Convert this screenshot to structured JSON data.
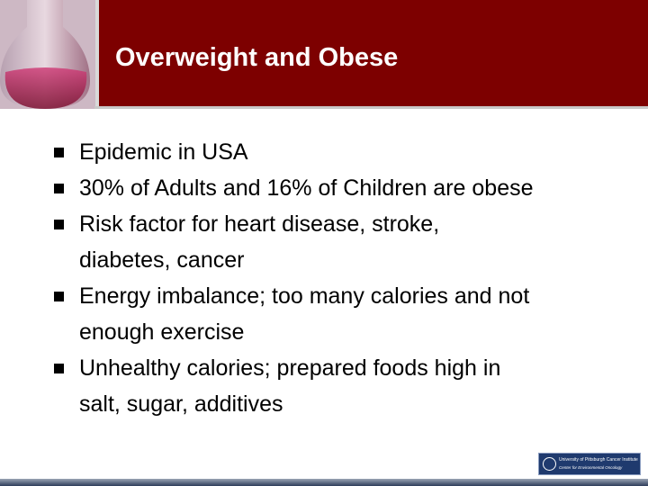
{
  "slide": {
    "title": "Overweight and Obese",
    "bullets": [
      [
        "Epidemic in USA"
      ],
      [
        "30% of Adults and 16% of Children are obese"
      ],
      [
        "Risk factor for heart disease, stroke,",
        "diabetes, cancer"
      ],
      [
        "Energy imbalance; too many calories and not",
        "enough exercise"
      ],
      [
        "Unhealthy calories; prepared foods high in",
        "salt, sugar, additives"
      ]
    ],
    "logo": {
      "line1": "University of Pittsburgh Cancer Institute",
      "line2": "Center for Environmental Oncology"
    }
  }
}
